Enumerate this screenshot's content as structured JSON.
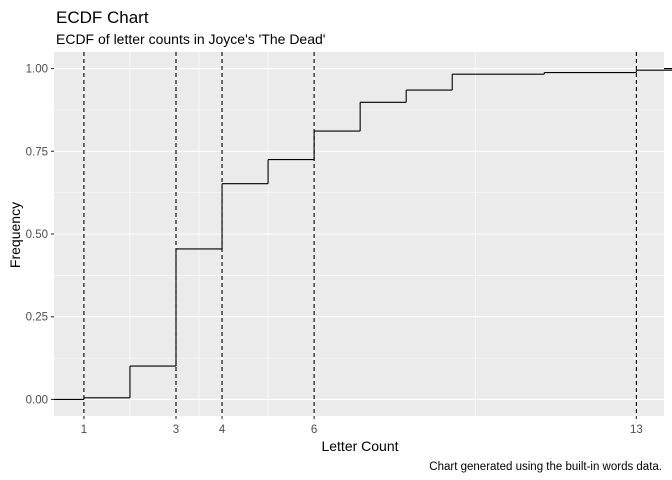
{
  "chart_data": {
    "type": "step",
    "title": "ECDF Chart",
    "subtitle": "ECDF of letter counts in Joyce's 'The Dead'",
    "xlabel": "Letter Count",
    "ylabel": "Frequency",
    "caption": "Chart generated using the built-in words data.",
    "xlim": [
      0.35,
      13.6
    ],
    "ylim": [
      -0.05,
      1.05
    ],
    "x_tick_labels": [
      "1",
      "3",
      "4",
      "6",
      "13"
    ],
    "x_ticks": [
      1,
      3,
      4,
      6,
      13
    ],
    "y_ticks": [
      0,
      0.25,
      0.5,
      0.75,
      1
    ],
    "y_tick_labels": [
      "0.00",
      "0.25",
      "0.50",
      "0.75",
      "1.00"
    ],
    "vertical_reference_lines": [
      1,
      3,
      4,
      6,
      13
    ],
    "ecdf_points": [
      {
        "x": 1,
        "y": 0.005
      },
      {
        "x": 2,
        "y": 0.101
      },
      {
        "x": 3,
        "y": 0.455
      },
      {
        "x": 4,
        "y": 0.652
      },
      {
        "x": 5,
        "y": 0.725
      },
      {
        "x": 6,
        "y": 0.811
      },
      {
        "x": 7,
        "y": 0.898
      },
      {
        "x": 8,
        "y": 0.935
      },
      {
        "x": 9,
        "y": 0.983
      },
      {
        "x": 11,
        "y": 0.988
      },
      {
        "x": 13,
        "y": 0.995
      },
      {
        "x": 14,
        "y": 1.0
      }
    ],
    "panel_background": "#ebebeb",
    "grid_color": "#ffffff",
    "line_color": "#000000",
    "grid": true,
    "legend": "none"
  }
}
